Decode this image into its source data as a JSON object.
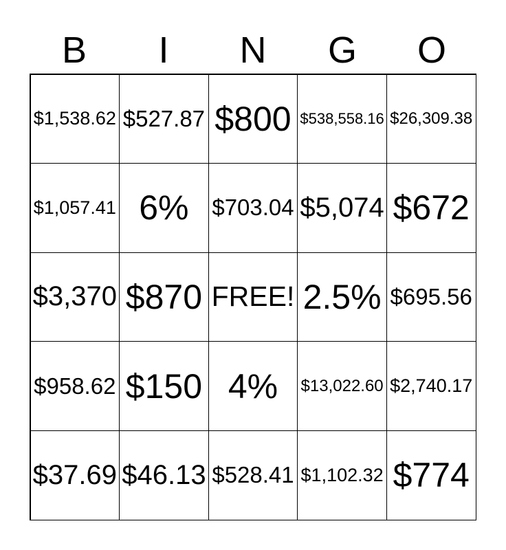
{
  "header": [
    "B",
    "I",
    "N",
    "G",
    "O"
  ],
  "cells": [
    [
      "$1,538.62",
      "$527.87",
      "$800",
      "$538,558.16",
      "$26,309.38"
    ],
    [
      "$1,057.41",
      "6%",
      "$703.04",
      "$5,074",
      "$672"
    ],
    [
      "$3,370",
      "$870",
      "FREE!",
      "2.5%",
      "$695.56"
    ],
    [
      "$958.62",
      "$150",
      "4%",
      "$13,022.60",
      "$2,740.17"
    ],
    [
      "$37.69",
      "$46.13",
      "$528.41",
      "$1,102.32",
      "$774"
    ]
  ]
}
